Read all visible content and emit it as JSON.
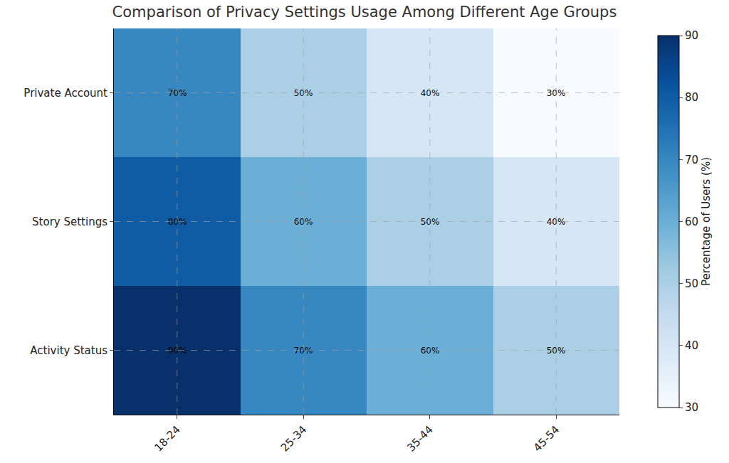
{
  "chart_data": {
    "type": "heatmap",
    "title": "Comparison of Privacy Settings Usage Among Different Age Groups",
    "x": [
      "18-24",
      "25-34",
      "35-44",
      "45-54"
    ],
    "y": [
      "Private Account",
      "Story Settings",
      "Activity Status"
    ],
    "values": [
      [
        70,
        50,
        40,
        30
      ],
      [
        80,
        60,
        50,
        40
      ],
      [
        90,
        70,
        60,
        50
      ]
    ],
    "value_labels": [
      [
        "70%",
        "50%",
        "40%",
        "30%"
      ],
      [
        "80%",
        "60%",
        "50%",
        "40%"
      ],
      [
        "90%",
        "70%",
        "60%",
        "50%"
      ]
    ],
    "data_labels": true,
    "grid": true,
    "colorbar_title": "Percentage of Users (%)",
    "colorbar_range": [
      30,
      90
    ],
    "colorbar_ticks": [
      30,
      40,
      50,
      60,
      70,
      80,
      90
    ]
  }
}
